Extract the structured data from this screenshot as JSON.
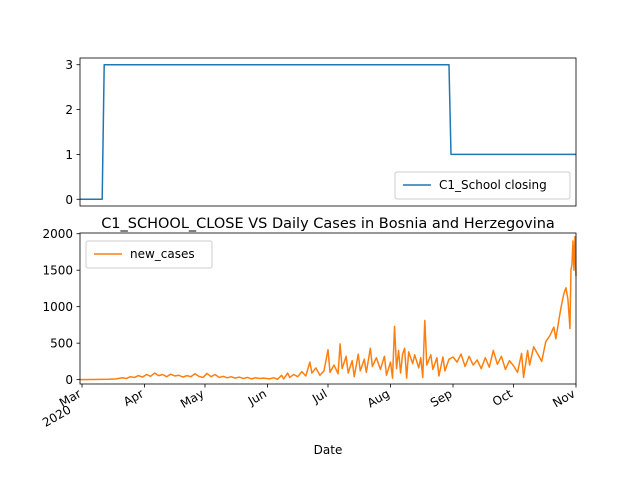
{
  "chart_data": [
    {
      "type": "line",
      "title": "",
      "xlabel": "",
      "ylabel": "",
      "x_range": [
        "2020-02-29",
        "2020-11-01"
      ],
      "ylim": [
        -0.15,
        3.15
      ],
      "yticks": [
        0,
        1,
        2,
        3
      ],
      "grid": false,
      "legend_position": "lower-right",
      "series": [
        {
          "name": "C1_School closing",
          "color": "#1f77b4",
          "points": [
            [
              "2020-02-29",
              0
            ],
            [
              "2020-03-11",
              0
            ],
            [
              "2020-03-12",
              3
            ],
            [
              "2020-08-30",
              3
            ],
            [
              "2020-08-31",
              1
            ],
            [
              "2020-11-01",
              1
            ]
          ]
        }
      ]
    },
    {
      "type": "line",
      "title": "C1_SCHOOL_CLOSE VS Daily Cases in Bosnia and Herzegovina",
      "xlabel": "Date",
      "ylabel": "",
      "x_range": [
        "2020-02-29",
        "2020-11-01"
      ],
      "ylim": [
        -60,
        2010
      ],
      "yticks": [
        0,
        500,
        1000,
        1500,
        2000
      ],
      "xticks": [
        {
          "date": "2020-03-01",
          "label": "Mar",
          "sublabel": "2020"
        },
        {
          "date": "2020-04-01",
          "label": "Apr"
        },
        {
          "date": "2020-05-01",
          "label": "May"
        },
        {
          "date": "2020-06-01",
          "label": "Jun"
        },
        {
          "date": "2020-07-01",
          "label": "Jul"
        },
        {
          "date": "2020-08-01",
          "label": "Aug"
        },
        {
          "date": "2020-09-01",
          "label": "Sep"
        },
        {
          "date": "2020-10-01",
          "label": "Oct"
        },
        {
          "date": "2020-11-01",
          "label": "Nov"
        }
      ],
      "grid": false,
      "legend_position": "upper-left",
      "series": [
        {
          "name": "new_cases",
          "color": "#ff7f0e",
          "points": [
            [
              "2020-02-29",
              0
            ],
            [
              "2020-03-05",
              2
            ],
            [
              "2020-03-10",
              3
            ],
            [
              "2020-03-14",
              5
            ],
            [
              "2020-03-18",
              10
            ],
            [
              "2020-03-21",
              25
            ],
            [
              "2020-03-23",
              15
            ],
            [
              "2020-03-25",
              40
            ],
            [
              "2020-03-27",
              30
            ],
            [
              "2020-03-29",
              55
            ],
            [
              "2020-03-31",
              35
            ],
            [
              "2020-04-02",
              70
            ],
            [
              "2020-04-04",
              45
            ],
            [
              "2020-04-06",
              90
            ],
            [
              "2020-04-08",
              55
            ],
            [
              "2020-04-10",
              70
            ],
            [
              "2020-04-12",
              40
            ],
            [
              "2020-04-14",
              75
            ],
            [
              "2020-04-16",
              50
            ],
            [
              "2020-04-18",
              60
            ],
            [
              "2020-04-20",
              35
            ],
            [
              "2020-04-22",
              55
            ],
            [
              "2020-04-24",
              40
            ],
            [
              "2020-04-26",
              80
            ],
            [
              "2020-04-28",
              45
            ],
            [
              "2020-04-30",
              30
            ],
            [
              "2020-05-02",
              85
            ],
            [
              "2020-05-04",
              40
            ],
            [
              "2020-05-06",
              70
            ],
            [
              "2020-05-08",
              30
            ],
            [
              "2020-05-10",
              45
            ],
            [
              "2020-05-12",
              25
            ],
            [
              "2020-05-14",
              40
            ],
            [
              "2020-05-16",
              20
            ],
            [
              "2020-05-18",
              35
            ],
            [
              "2020-05-20",
              15
            ],
            [
              "2020-05-22",
              30
            ],
            [
              "2020-05-24",
              10
            ],
            [
              "2020-05-26",
              25
            ],
            [
              "2020-05-28",
              15
            ],
            [
              "2020-05-30",
              20
            ],
            [
              "2020-06-02",
              10
            ],
            [
              "2020-06-04",
              25
            ],
            [
              "2020-06-06",
              5
            ],
            [
              "2020-06-08",
              60
            ],
            [
              "2020-06-09",
              10
            ],
            [
              "2020-06-11",
              90
            ],
            [
              "2020-06-12",
              30
            ],
            [
              "2020-06-14",
              70
            ],
            [
              "2020-06-16",
              40
            ],
            [
              "2020-06-18",
              110
            ],
            [
              "2020-06-20",
              50
            ],
            [
              "2020-06-22",
              240
            ],
            [
              "2020-06-23",
              90
            ],
            [
              "2020-06-25",
              160
            ],
            [
              "2020-06-27",
              60
            ],
            [
              "2020-06-29",
              120
            ],
            [
              "2020-07-01",
              410
            ],
            [
              "2020-07-02",
              100
            ],
            [
              "2020-07-04",
              200
            ],
            [
              "2020-07-06",
              80
            ],
            [
              "2020-07-07",
              490
            ],
            [
              "2020-07-08",
              150
            ],
            [
              "2020-07-10",
              320
            ],
            [
              "2020-07-11",
              90
            ],
            [
              "2020-07-13",
              260
            ],
            [
              "2020-07-14",
              40
            ],
            [
              "2020-07-16",
              350
            ],
            [
              "2020-07-17",
              120
            ],
            [
              "2020-07-19",
              280
            ],
            [
              "2020-07-20",
              100
            ],
            [
              "2020-07-22",
              430
            ],
            [
              "2020-07-23",
              180
            ],
            [
              "2020-07-25",
              300
            ],
            [
              "2020-07-27",
              140
            ],
            [
              "2020-07-29",
              320
            ],
            [
              "2020-07-30",
              60
            ],
            [
              "2020-08-01",
              240
            ],
            [
              "2020-08-02",
              20
            ],
            [
              "2020-08-03",
              730
            ],
            [
              "2020-08-04",
              150
            ],
            [
              "2020-08-05",
              400
            ],
            [
              "2020-08-06",
              90
            ],
            [
              "2020-08-07",
              350
            ],
            [
              "2020-08-08",
              430
            ],
            [
              "2020-08-09",
              20
            ],
            [
              "2020-08-10",
              380
            ],
            [
              "2020-08-12",
              220
            ],
            [
              "2020-08-13",
              340
            ],
            [
              "2020-08-15",
              160
            ],
            [
              "2020-08-16",
              300
            ],
            [
              "2020-08-17",
              30
            ],
            [
              "2020-08-18",
              810
            ],
            [
              "2020-08-19",
              200
            ],
            [
              "2020-08-21",
              340
            ],
            [
              "2020-08-22",
              140
            ],
            [
              "2020-08-24",
              300
            ],
            [
              "2020-08-25",
              50
            ],
            [
              "2020-08-27",
              310
            ],
            [
              "2020-08-28",
              120
            ],
            [
              "2020-08-30",
              280
            ],
            [
              "2020-09-01",
              310
            ],
            [
              "2020-09-03",
              240
            ],
            [
              "2020-09-05",
              350
            ],
            [
              "2020-09-07",
              180
            ],
            [
              "2020-09-09",
              320
            ],
            [
              "2020-09-11",
              200
            ],
            [
              "2020-09-13",
              270
            ],
            [
              "2020-09-15",
              150
            ],
            [
              "2020-09-17",
              300
            ],
            [
              "2020-09-19",
              170
            ],
            [
              "2020-09-21",
              400
            ],
            [
              "2020-09-23",
              210
            ],
            [
              "2020-09-25",
              320
            ],
            [
              "2020-09-27",
              140
            ],
            [
              "2020-09-29",
              260
            ],
            [
              "2020-10-01",
              190
            ],
            [
              "2020-10-03",
              100
            ],
            [
              "2020-10-05",
              360
            ],
            [
              "2020-10-06",
              30
            ],
            [
              "2020-10-08",
              400
            ],
            [
              "2020-10-09",
              200
            ],
            [
              "2020-10-11",
              450
            ],
            [
              "2020-10-13",
              350
            ],
            [
              "2020-10-15",
              250
            ],
            [
              "2020-10-17",
              520
            ],
            [
              "2020-10-19",
              600
            ],
            [
              "2020-10-21",
              720
            ],
            [
              "2020-10-22",
              560
            ],
            [
              "2020-10-24",
              900
            ],
            [
              "2020-10-25",
              1050
            ],
            [
              "2020-10-26",
              1180
            ],
            [
              "2020-10-27",
              1260
            ],
            [
              "2020-10-28",
              1100
            ],
            [
              "2020-10-29",
              700
            ],
            [
              "2020-10-29T12:00",
              1500
            ],
            [
              "2020-10-30",
              1580
            ],
            [
              "2020-10-30T12:00",
              1900
            ],
            [
              "2020-10-31",
              1500
            ],
            [
              "2020-10-31T12:00",
              1960
            ],
            [
              "2020-11-01",
              1420
            ]
          ]
        }
      ]
    }
  ]
}
